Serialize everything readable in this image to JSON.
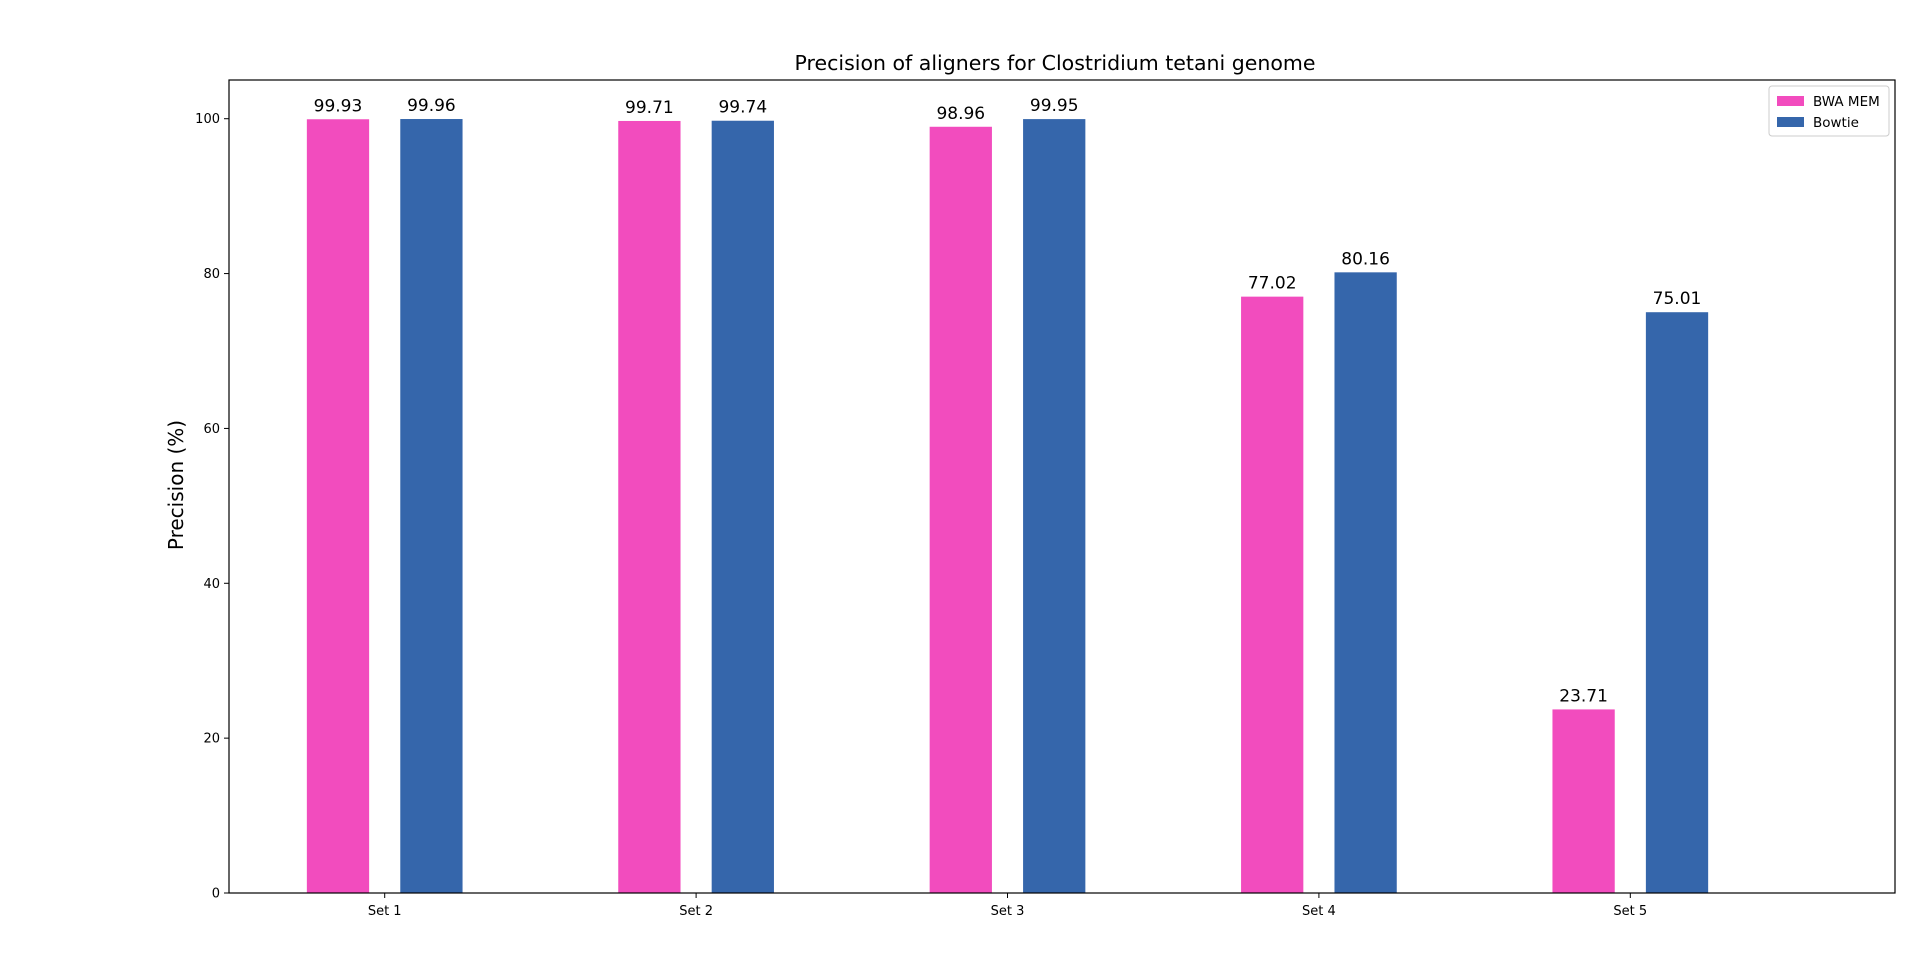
{
  "chart_data": {
    "type": "bar",
    "title": "Precision of aligners for Clostridium tetani genome",
    "xlabel": "",
    "ylabel": "Precision (%)",
    "categories": [
      "Set 1",
      "Set 2",
      "Set 3",
      "Set 4",
      "Set 5"
    ],
    "series": [
      {
        "name": "BWA MEM",
        "color": "#f24cbe",
        "values": [
          99.93,
          99.71,
          98.96,
          77.02,
          23.71
        ],
        "labels": [
          "99.93",
          "99.71",
          "98.96",
          "77.02",
          "23.71"
        ]
      },
      {
        "name": "Bowtie",
        "color": "#3566ab",
        "values": [
          99.96,
          99.74,
          99.95,
          80.16,
          75.01
        ],
        "labels": [
          "99.96",
          "99.74",
          "99.95",
          "80.16",
          "75.01"
        ]
      }
    ],
    "ylim": [
      0,
      105
    ],
    "yticks": [
      0,
      20,
      40,
      60,
      80,
      100
    ],
    "grid": false,
    "legend_position": "top-right"
  }
}
